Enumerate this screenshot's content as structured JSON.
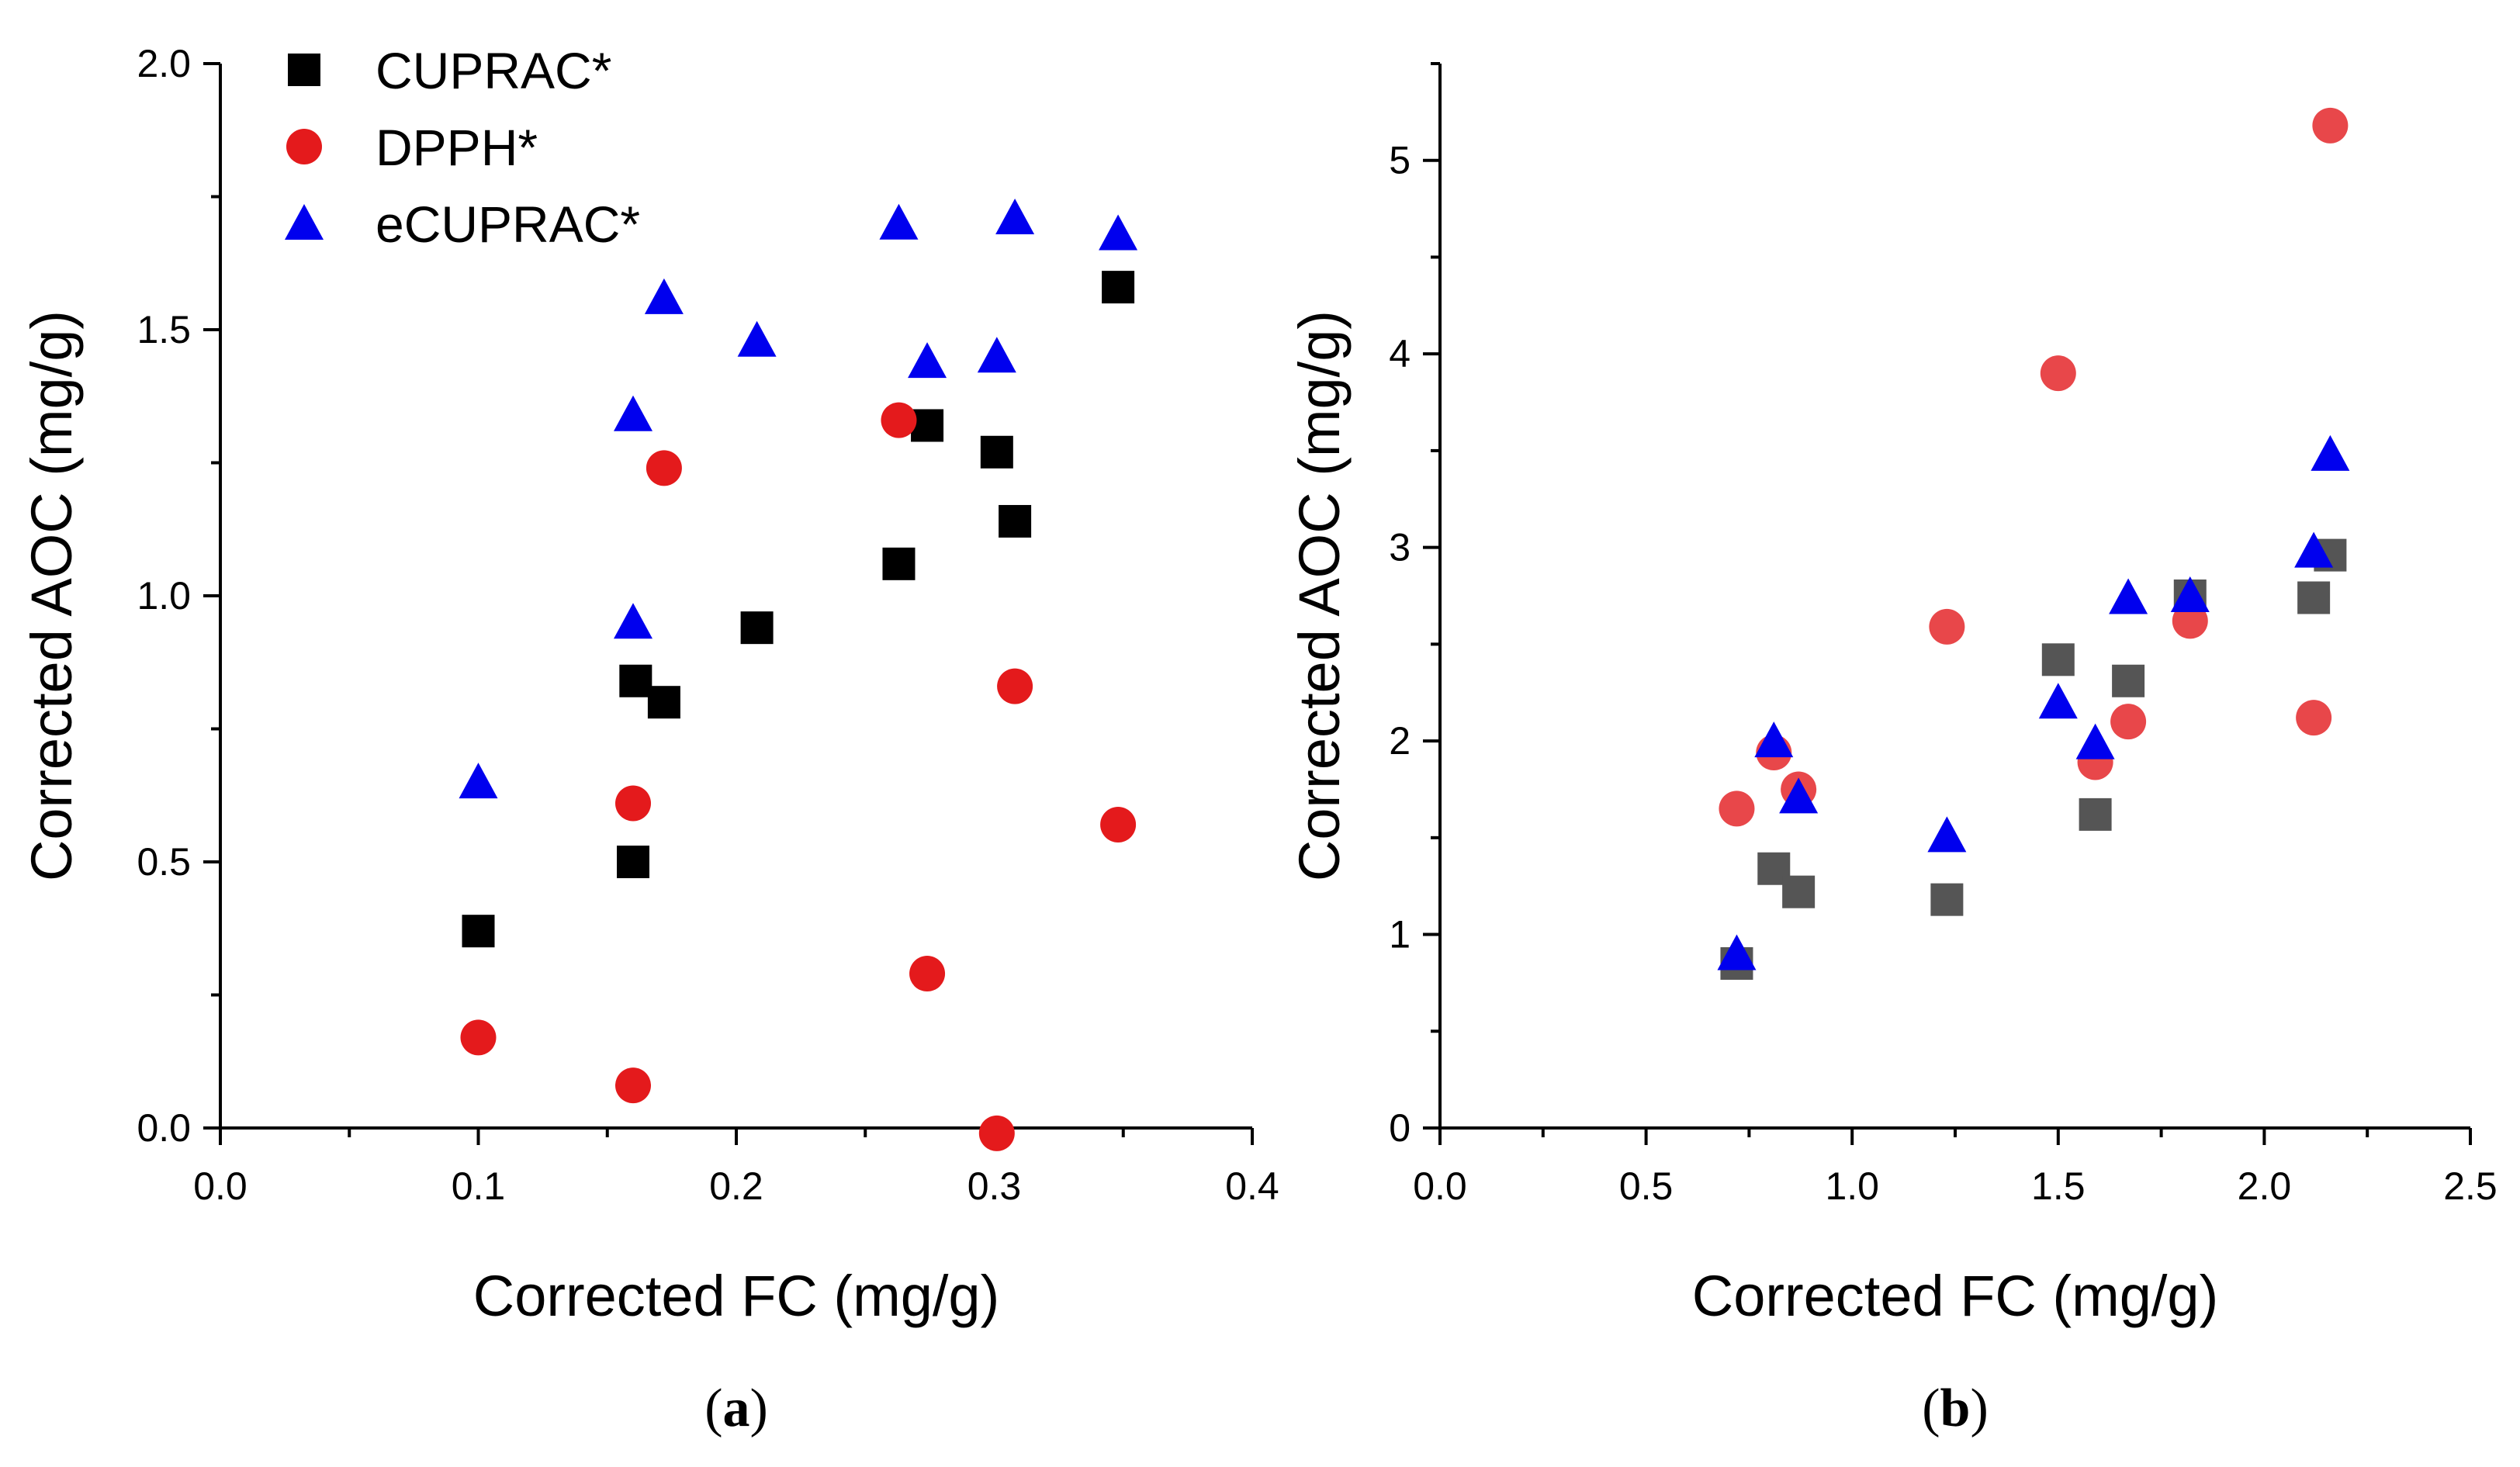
{
  "figure": {
    "panels": [
      "a",
      "b"
    ]
  },
  "chart_data": [
    {
      "type": "scatter",
      "panel_label": "a",
      "xlabel": "Corrected FC (mg/g)",
      "ylabel": "Corrected AOC (mg/g)",
      "xlim": [
        0.0,
        0.4
      ],
      "ylim": [
        0.0,
        2.0
      ],
      "xticks": [
        "0.0",
        "0.1",
        "0.2",
        "0.3",
        "0.4"
      ],
      "yticks": [
        "0.0",
        "0.5",
        "1.0",
        "1.5",
        "2.0"
      ],
      "legend_position": "top-left",
      "series": [
        {
          "name": "CUPRAC*",
          "marker": "square",
          "color": "#000000",
          "x": [
            0.1,
            0.16,
            0.161,
            0.172,
            0.208,
            0.263,
            0.274,
            0.301,
            0.308,
            0.348
          ],
          "y": [
            0.37,
            0.5,
            0.84,
            0.8,
            0.94,
            1.06,
            1.32,
            1.27,
            1.14,
            1.58
          ]
        },
        {
          "name": "DPPH*",
          "marker": "circle",
          "color": "#e41a1c",
          "x": [
            0.1,
            0.16,
            0.16,
            0.172,
            0.263,
            0.274,
            0.301,
            0.308,
            0.348
          ],
          "y": [
            0.17,
            0.61,
            0.08,
            1.24,
            1.33,
            0.29,
            -0.01,
            0.83,
            0.57
          ]
        },
        {
          "name": "eCUPRAC*",
          "marker": "triangle",
          "color": "#0000ee",
          "x": [
            0.1,
            0.16,
            0.16,
            0.172,
            0.208,
            0.263,
            0.274,
            0.301,
            0.308,
            0.348
          ],
          "y": [
            0.65,
            1.34,
            0.95,
            1.56,
            1.48,
            1.7,
            1.44,
            1.45,
            1.71,
            1.68
          ]
        }
      ]
    },
    {
      "type": "scatter",
      "panel_label": "b",
      "xlabel": "Corrected FC (mg/g)",
      "ylabel": "Corrected AOC (mg/g)",
      "xlim": [
        0.0,
        2.5
      ],
      "ylim": [
        0,
        5.5
      ],
      "xticks": [
        "0.0",
        "0.5",
        "1.0",
        "1.5",
        "2.0",
        "2.5"
      ],
      "yticks": [
        "0",
        "1",
        "2",
        "3",
        "4",
        "5"
      ],
      "series": [
        {
          "name": "CUPRAC*",
          "marker": "square",
          "color": "#555555",
          "x": [
            0.72,
            0.81,
            0.87,
            1.23,
            1.5,
            1.59,
            1.67,
            1.82,
            2.12,
            2.16
          ],
          "y": [
            0.85,
            1.34,
            1.22,
            1.18,
            2.42,
            1.62,
            2.31,
            2.75,
            2.74,
            2.96
          ]
        },
        {
          "name": "DPPH*",
          "marker": "circle",
          "color": "#e8474a",
          "x": [
            0.72,
            0.81,
            0.87,
            1.23,
            1.5,
            1.59,
            1.67,
            1.82,
            2.12,
            2.16
          ],
          "y": [
            1.65,
            1.94,
            1.75,
            2.59,
            3.9,
            1.89,
            2.1,
            2.62,
            2.12,
            5.18
          ]
        },
        {
          "name": "eCUPRAC*",
          "marker": "triangle",
          "color": "#0000ee",
          "x": [
            0.72,
            0.81,
            0.87,
            1.23,
            1.5,
            1.59,
            1.67,
            1.82,
            2.12,
            2.16
          ],
          "y": [
            0.9,
            2.0,
            1.71,
            1.51,
            2.2,
            1.99,
            2.74,
            2.75,
            2.98,
            3.48
          ]
        }
      ]
    }
  ]
}
